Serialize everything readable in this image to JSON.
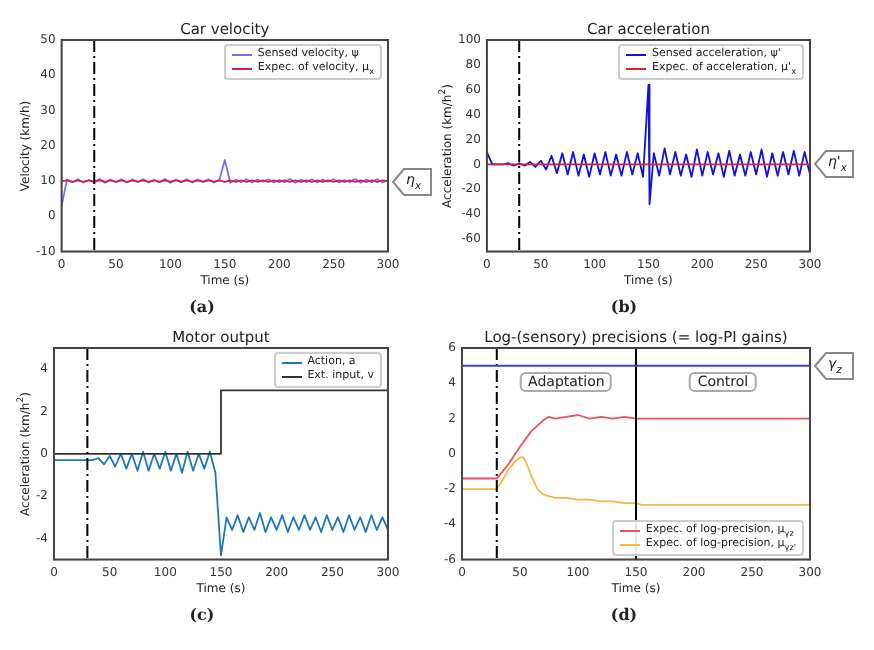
{
  "chart_data": [
    {
      "type": "line",
      "title": "Car velocity",
      "xlabel": "Time (s)",
      "ylabel": "Velocity (km/h)",
      "xlim": [
        0,
        300
      ],
      "xticks": [
        0,
        50,
        100,
        150,
        200,
        250,
        300
      ],
      "ylim": [
        -10,
        50
      ],
      "yticks": [
        -10,
        0,
        10,
        20,
        30,
        40,
        50
      ],
      "legend": "top right",
      "x": [
        0,
        5,
        10,
        15,
        20,
        25,
        30,
        35,
        40,
        45,
        50,
        55,
        60,
        65,
        70,
        75,
        80,
        85,
        90,
        95,
        100,
        105,
        110,
        115,
        120,
        125,
        130,
        135,
        140,
        145,
        150,
        155,
        160,
        165,
        170,
        175,
        180,
        185,
        190,
        195,
        200,
        205,
        210,
        215,
        220,
        225,
        230,
        235,
        240,
        245,
        250,
        255,
        260,
        265,
        270,
        275,
        280,
        285,
        290,
        295,
        300
      ],
      "series": [
        {
          "name": "Sensed velocity, ψ",
          "color": "#7a6cf0",
          "values": [
            3,
            10.4,
            9.7,
            10.5,
            9.6,
            10.3,
            9.8,
            10.6,
            9.5,
            10.4,
            9.7,
            10.5,
            9.6,
            10.4,
            9.8,
            10.5,
            9.6,
            10.3,
            9.7,
            10.6,
            9.5,
            10.4,
            9.7,
            10.5,
            9.6,
            10.4,
            9.8,
            10.5,
            9.6,
            10.3,
            16,
            9.5,
            10.4,
            9.7,
            10.5,
            9.6,
            10.4,
            9.8,
            10.5,
            9.6,
            10.3,
            9.7,
            10.6,
            9.5,
            10.4,
            9.7,
            10.5,
            9.6,
            10.4,
            9.8,
            10.5,
            9.6,
            10.3,
            9.7,
            10.6,
            9.5,
            10.4,
            9.7,
            10.5,
            9.6,
            10.2
          ]
        },
        {
          "name": "Expec. of velocity, μ$_{x}$",
          "color": "#d0204f",
          "values": [
            10,
            10.2,
            9.8,
            10.2,
            9.8,
            10.2,
            9.8,
            10.2,
            9.8,
            10.2,
            9.8,
            10.2,
            9.8,
            10.2,
            9.8,
            10.2,
            9.8,
            10.2,
            9.8,
            10.2,
            9.8,
            10.2,
            9.8,
            10.2,
            9.8,
            10.2,
            9.8,
            10.2,
            9.8,
            10.2,
            9.8,
            10.2,
            9.8,
            10.2,
            9.8,
            10.2,
            9.8,
            10.2,
            9.8,
            10.2,
            9.8,
            10.2,
            9.8,
            10.2,
            9.8,
            10.2,
            9.8,
            10.2,
            9.8,
            10.2,
            9.8,
            10.2,
            9.8,
            10.2,
            9.8,
            10.2,
            9.8,
            10.2,
            9.8,
            10.2,
            10
          ]
        }
      ],
      "ref_lines": [
        {
          "axis": "x",
          "value": 30,
          "color": "#000000",
          "line_style": "dashed"
        }
      ],
      "annotations": [
        {
          "text": "η$_{x}$",
          "x": 300,
          "y": 10
        },
        "(a)"
      ]
    },
    {
      "type": "line",
      "title": "Car acceleration",
      "xlabel": "Time (s)",
      "ylabel": "Acceleration (km/h$^{2}$)",
      "xlim": [
        0,
        300
      ],
      "xticks": [
        0,
        50,
        100,
        150,
        200,
        250,
        300
      ],
      "ylim": [
        -70,
        100
      ],
      "yticks": [
        -60,
        -40,
        -20,
        0,
        20,
        40,
        60,
        80,
        100
      ],
      "legend": "top right",
      "series": [
        {
          "name": "Sensed acceleration, ψ'",
          "color": "#1010e0",
          "x": [
            0,
            5,
            10,
            15,
            20,
            25,
            30,
            35,
            40,
            45,
            50,
            55,
            60,
            65,
            70,
            75,
            80,
            85,
            90,
            95,
            100,
            105,
            110,
            115,
            120,
            125,
            130,
            135,
            140,
            145,
            150,
            151,
            155,
            160,
            165,
            170,
            175,
            180,
            185,
            190,
            195,
            200,
            205,
            210,
            215,
            220,
            225,
            230,
            235,
            240,
            245,
            250,
            255,
            260,
            265,
            270,
            275,
            280,
            285,
            290,
            295,
            300
          ],
          "values": [
            10,
            0,
            0,
            0,
            1,
            -1,
            1,
            -1,
            2,
            -2,
            3,
            -4,
            7,
            -7,
            9,
            -8,
            10,
            -9,
            8,
            -10,
            9,
            -8,
            10,
            -9,
            8,
            -9,
            10,
            -8,
            9,
            -10,
            64,
            -32,
            9,
            -9,
            13,
            -8,
            10,
            -9,
            8,
            -10,
            12,
            -9,
            10,
            -8,
            9,
            -10,
            11,
            -9,
            8,
            -9,
            10,
            -8,
            12,
            -10,
            9,
            -9,
            10,
            -8,
            11,
            -9,
            10,
            -8
          ]
        },
        {
          "name": "Expec. of acceleration, μ'$_{x}$",
          "color": "#d62728",
          "x": [
            0,
            300
          ],
          "values": [
            0,
            0
          ]
        }
      ],
      "ref_lines": [
        {
          "axis": "x",
          "value": 30,
          "color": "#000000",
          "line_style": "dashed"
        }
      ],
      "annotations": [
        {
          "text": "η'$_{x}$",
          "x": 300,
          "y": 0
        },
        "(b)"
      ]
    },
    {
      "type": "line",
      "title": "Motor output",
      "xlabel": "Time (s)",
      "ylabel": "Acceleration (km/h$^{2}$)",
      "xlim": [
        0,
        300
      ],
      "xticks": [
        0,
        50,
        100,
        150,
        200,
        250,
        300
      ],
      "ylim": [
        -5,
        5
      ],
      "yticks": [
        -4,
        -2,
        0,
        2,
        4
      ],
      "legend": "top right",
      "x": [
        0,
        5,
        10,
        15,
        20,
        25,
        30,
        35,
        40,
        45,
        50,
        55,
        60,
        65,
        70,
        75,
        80,
        85,
        90,
        95,
        100,
        105,
        110,
        115,
        120,
        125,
        130,
        135,
        140,
        145,
        150,
        155,
        160,
        165,
        170,
        175,
        180,
        185,
        190,
        195,
        200,
        205,
        210,
        215,
        220,
        225,
        230,
        235,
        240,
        245,
        250,
        255,
        260,
        265,
        270,
        275,
        280,
        285,
        290,
        295,
        300
      ],
      "series": [
        {
          "name": "Action, a",
          "color": "#1f77b4",
          "values": [
            -0.3,
            -0.3,
            -0.3,
            -0.3,
            -0.3,
            -0.3,
            -0.3,
            -0.3,
            -0.2,
            -0.5,
            -0.1,
            -0.6,
            0,
            -0.7,
            0,
            -0.8,
            0.1,
            -0.8,
            0,
            -0.7,
            0.1,
            -0.8,
            0,
            -0.9,
            0.1,
            -0.8,
            0,
            -0.7,
            0.1,
            -0.9,
            -4.8,
            -3,
            -3.6,
            -2.9,
            -3.7,
            -3,
            -3.6,
            -2.8,
            -3.7,
            -3,
            -3.6,
            -2.9,
            -3.7,
            -3,
            -3.6,
            -2.9,
            -3.6,
            -3,
            -3.7,
            -2.9,
            -3.6,
            -3,
            -3.7,
            -2.9,
            -3.6,
            -3,
            -3.7,
            -2.9,
            -3.6,
            -3,
            -3.6
          ]
        },
        {
          "name": "Ext. input, v",
          "color": "#333333",
          "x": [
            0,
            150,
            150,
            300
          ],
          "values": [
            0,
            0,
            3,
            3
          ]
        }
      ],
      "ref_lines": [
        {
          "axis": "x",
          "value": 30,
          "color": "#000000",
          "line_style": "dashed"
        }
      ],
      "annotations": [
        "(c)"
      ]
    },
    {
      "type": "line",
      "title": "Log-(sensory) precisions (= log-PI gains)",
      "xlabel": "Time (s)",
      "xlim": [
        0,
        300
      ],
      "xticks": [
        0,
        50,
        100,
        150,
        200,
        250,
        300
      ],
      "ylim": [
        -6,
        6
      ],
      "yticks": [
        -6,
        -4,
        -2,
        0,
        2,
        4,
        6
      ],
      "legend": "bottom right",
      "series": [
        {
          "name": "Expec. of log-precision, μ$_{γz}$",
          "color": "#e8545e",
          "x": [
            0,
            30,
            40,
            50,
            60,
            70,
            75,
            80,
            90,
            100,
            110,
            120,
            130,
            140,
            150,
            160,
            200,
            250,
            300
          ],
          "values": [
            -1.4,
            -1.4,
            -0.6,
            0.4,
            1.3,
            1.9,
            2.1,
            2.0,
            2.1,
            2.2,
            2.0,
            2.1,
            2.0,
            2.1,
            2.0,
            2.0,
            2.0,
            2.0,
            2.0
          ]
        },
        {
          "name": "Expec. of log-precision, μ$_{γz'}$",
          "color": "#f5b942",
          "x": [
            0,
            30,
            35,
            40,
            45,
            50,
            53,
            56,
            60,
            65,
            70,
            75,
            80,
            90,
            100,
            110,
            120,
            130,
            140,
            150,
            155,
            200,
            250,
            300
          ],
          "values": [
            -2,
            -2,
            -1.5,
            -0.9,
            -0.5,
            -0.2,
            -0.2,
            -0.6,
            -1.3,
            -2,
            -2.3,
            -2.4,
            -2.5,
            -2.5,
            -2.6,
            -2.6,
            -2.7,
            -2.7,
            -2.8,
            -2.8,
            -2.9,
            -2.9,
            -2.9,
            -2.9
          ]
        }
      ],
      "ref_lines": [
        {
          "axis": "x",
          "value": 30,
          "color": "#000000",
          "line_style": "dashed"
        },
        {
          "axis": "x",
          "value": 150,
          "color": "#000000"
        },
        {
          "axis": "y",
          "value": 5,
          "color": "#4040c8",
          "label": "γ$_{z}$"
        }
      ],
      "annotations": [
        "Adaptation",
        "Control",
        "(d)"
      ]
    }
  ]
}
